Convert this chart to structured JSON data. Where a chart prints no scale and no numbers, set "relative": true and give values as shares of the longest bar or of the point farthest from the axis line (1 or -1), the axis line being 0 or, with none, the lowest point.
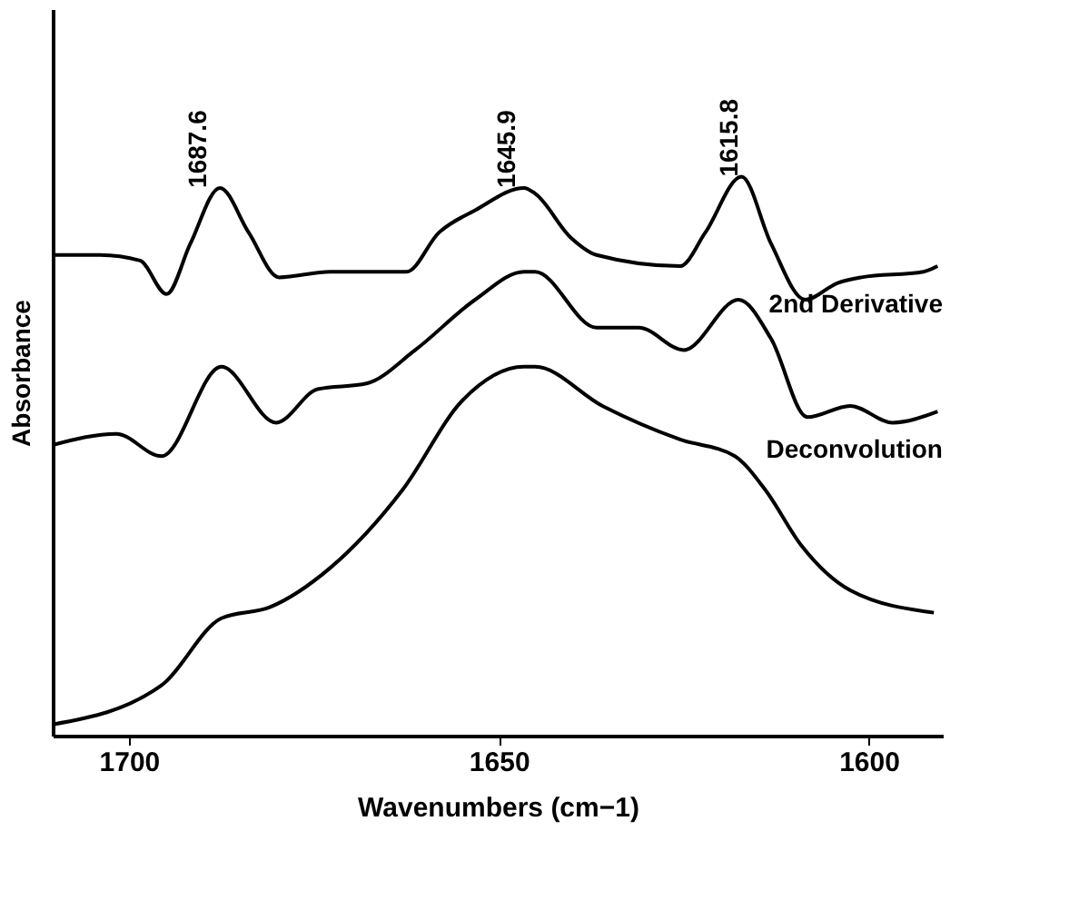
{
  "chart_data": {
    "type": "line",
    "relative": true,
    "xlabel": "Wavenumbers  (cm−1)",
    "ylabel": "Absorbance",
    "xlim": [
      1710.3,
      1590
    ],
    "xticks": [
      1700,
      1650,
      1600
    ],
    "grid": false,
    "marker": "none",
    "line_style": "solid",
    "series": [
      {
        "name": "2nd Derivative",
        "color": "#000000",
        "x": [
          1710.3,
          1703.9,
          1698.5,
          1694.9,
          1691.7,
          1687.7,
          1683.8,
          1679.7,
          1672.8,
          1662.5,
          1658.1,
          1653.2,
          1646.6,
          1645.1,
          1640.2,
          1636.8,
          1625.5,
          1622.1,
          1617.2,
          1613.2,
          1608.6,
          1604.2,
          1601.0,
          1592.6,
          1590.7
        ],
        "values": [
          0.86,
          0.86,
          0.85,
          0.79,
          0.88,
          0.98,
          0.9,
          0.82,
          0.83,
          0.83,
          0.9,
          0.94,
          0.98,
          0.97,
          0.89,
          0.86,
          0.84,
          0.9,
          1.0,
          0.88,
          0.78,
          0.81,
          0.82,
          0.83,
          0.84
        ]
      },
      {
        "name": "Deconvolution",
        "color": "#000000",
        "x": [
          1710.3,
          1701.7,
          1695.6,
          1687.5,
          1680.1,
          1674.5,
          1667.9,
          1661.3,
          1653.2,
          1646.6,
          1645.1,
          1636.8,
          1631.1,
          1625.0,
          1617.6,
          1613.2,
          1608.3,
          1602.5,
          1596.8,
          1590.7
        ],
        "values": [
          0.52,
          0.54,
          0.5,
          0.66,
          0.56,
          0.62,
          0.63,
          0.69,
          0.78,
          0.83,
          0.83,
          0.73,
          0.73,
          0.69,
          0.78,
          0.71,
          0.57,
          0.59,
          0.56,
          0.58
        ]
      },
      {
        "color": "#000000",
        "x": [
          1710.3,
          1695.6,
          1687.5,
          1680.9,
          1672.8,
          1663.0,
          1654.9,
          1646.6,
          1645.1,
          1636.0,
          1625.5,
          1618.1,
          1614.0,
          1609.1,
          1602.5,
          1591.2
        ],
        "values": [
          0.02,
          0.09,
          0.21,
          0.23,
          0.3,
          0.44,
          0.6,
          0.66,
          0.66,
          0.59,
          0.53,
          0.5,
          0.44,
          0.34,
          0.26,
          0.22
        ]
      }
    ],
    "annotations": [
      {
        "text": "1687.6",
        "x": 1687.6,
        "y": 0.98
      },
      {
        "text": "1645.9",
        "x": 1645.9,
        "y": 0.98
      },
      {
        "text": "1615.8",
        "x": 1615.8,
        "y": 1.0
      }
    ]
  }
}
